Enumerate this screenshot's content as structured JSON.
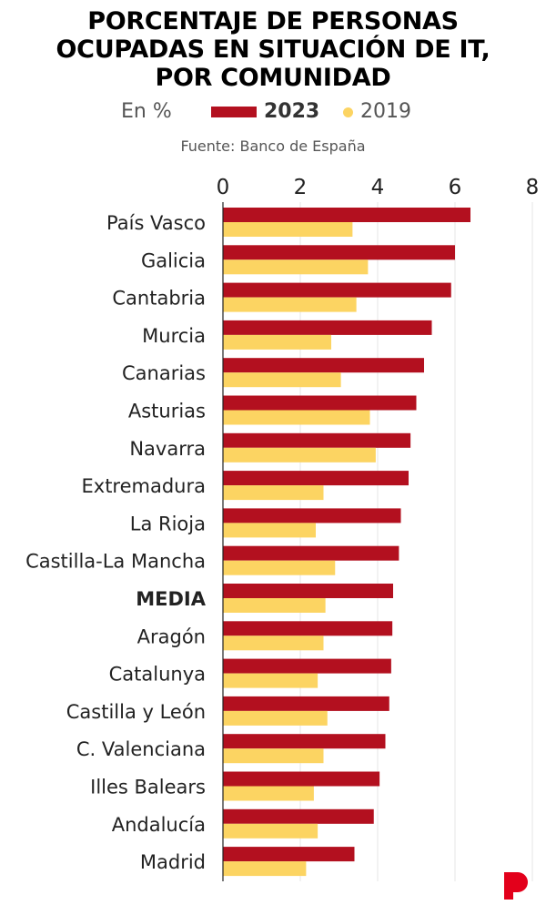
{
  "title_lines": [
    "PORCENTAJE DE PERSONAS",
    "OCUPADAS EN SITUACIÓN DE IT,",
    "POR COMUNIDAD"
  ],
  "legend": {
    "unit": "En %",
    "series_2023": "2023",
    "series_2019": "2019"
  },
  "source": "Fuente: Banco de España",
  "colors": {
    "s2023": "#b3101f",
    "s2019": "#fcd462",
    "logo": "#e3001b",
    "grid": "#e6e6e6"
  },
  "chart_data": {
    "type": "bar",
    "orientation": "horizontal",
    "title": "PORCENTAJE DE PERSONAS OCUPADAS EN SITUACIÓN DE IT, POR COMUNIDAD",
    "unit": "En %",
    "xlim": [
      0,
      8
    ],
    "x_ticks": [
      0,
      2,
      4,
      6,
      8
    ],
    "grid": true,
    "legend_position": "top",
    "categories": [
      "País Vasco",
      "Galicia",
      "Cantabria",
      "Murcia",
      "Canarias",
      "Asturias",
      "Navarra",
      "Extremadura",
      "La Rioja",
      "Castilla-La Mancha",
      "MEDIA",
      "Aragón",
      "Catalunya",
      "Castilla y León",
      "C. Valenciana",
      "Illes Balears",
      "Andalucía",
      "Madrid"
    ],
    "highlight_category": "MEDIA",
    "series": [
      {
        "name": "2023",
        "values": [
          6.4,
          6.0,
          5.9,
          5.4,
          5.2,
          5.0,
          4.85,
          4.8,
          4.6,
          4.55,
          4.4,
          4.38,
          4.35,
          4.3,
          4.2,
          4.05,
          3.9,
          3.4
        ]
      },
      {
        "name": "2019",
        "values": [
          3.35,
          3.75,
          3.45,
          2.8,
          3.05,
          3.8,
          3.95,
          2.6,
          2.4,
          2.9,
          2.65,
          2.6,
          2.45,
          2.7,
          2.6,
          2.35,
          2.45,
          2.15
        ]
      }
    ]
  }
}
